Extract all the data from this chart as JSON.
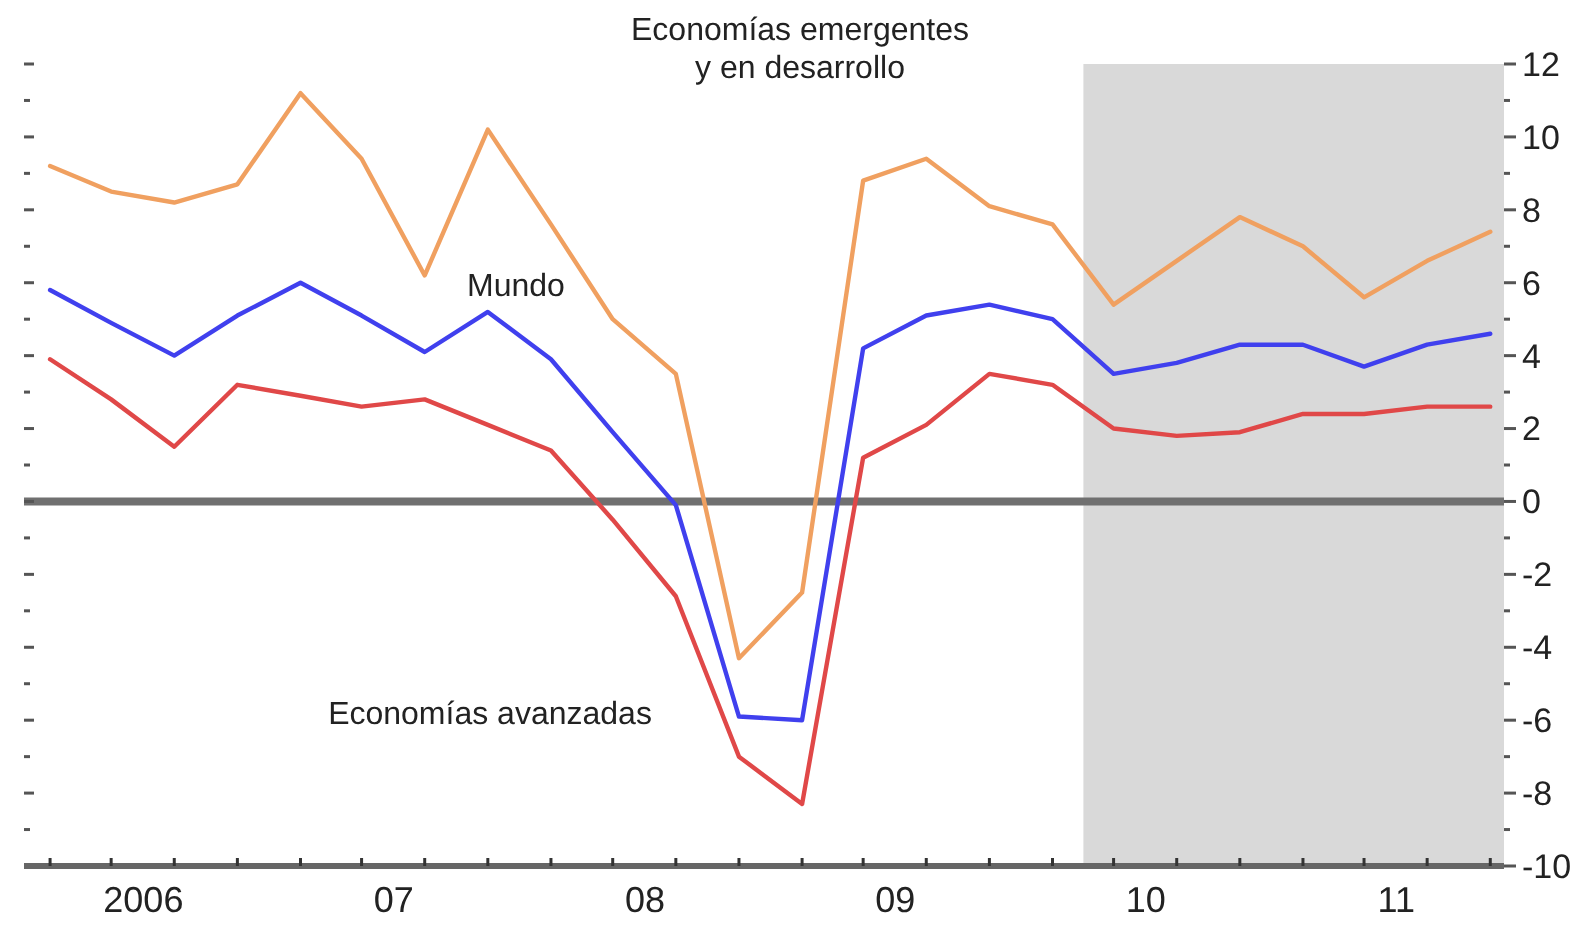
{
  "chart_data": {
    "type": "line",
    "x": [
      "2006-02-15",
      "2006-05-15",
      "2006-08-15",
      "2006-11-15",
      "2007-02-15",
      "2007-05-15",
      "2007-08-15",
      "2007-11-15",
      "2008-02-15",
      "2008-05-15",
      "2008-08-15",
      "2008-11-15",
      "2009-02-15",
      "2009-05-15",
      "2009-08-15",
      "2009-11-15",
      "2010-02-15",
      "2010-05-15",
      "2010-08-15",
      "2010-11-15",
      "2011-02-15",
      "2011-05-15",
      "2011-08-15",
      "2011-11-15"
    ],
    "series": [
      {
        "name": "Economías emergentes y en desarrollo",
        "color": "#f0a060",
        "values": [
          9.2,
          8.5,
          8.2,
          8.7,
          11.2,
          9.4,
          6.2,
          10.2,
          7.6,
          5.0,
          3.5,
          -4.3,
          -2.5,
          8.8,
          9.4,
          8.1,
          7.6,
          5.4,
          6.6,
          7.8,
          7.0,
          5.6,
          6.6,
          7.4
        ]
      },
      {
        "name": "Mundo",
        "color": "#4040ee",
        "values": [
          5.8,
          4.9,
          4.0,
          5.1,
          6.0,
          5.1,
          4.1,
          5.2,
          3.9,
          1.9,
          -0.1,
          -5.9,
          -6.0,
          4.2,
          5.1,
          5.4,
          5.0,
          3.5,
          3.8,
          4.3,
          4.3,
          3.7,
          4.3,
          4.6
        ]
      },
      {
        "name": "Economías avanzadas",
        "color": "#e04848",
        "values": [
          3.9,
          2.8,
          1.5,
          3.2,
          2.9,
          2.6,
          2.8,
          2.1,
          1.4,
          -0.5,
          -2.6,
          -7.0,
          -8.3,
          1.2,
          2.1,
          3.5,
          3.2,
          2.0,
          1.8,
          1.9,
          2.4,
          2.4,
          2.6,
          2.6
        ]
      }
    ],
    "xlim": [
      "2006-01-08",
      "2011-12-05"
    ],
    "xticks": [
      {
        "value": "2006-02-15",
        "label": null
      },
      {
        "value": "2006-05-15",
        "label": null
      },
      {
        "value": "2006-07-01",
        "label": "2006"
      },
      {
        "value": "2006-08-15",
        "label": null
      },
      {
        "value": "2006-11-15",
        "label": null
      },
      {
        "value": "2007-02-15",
        "label": null
      },
      {
        "value": "2007-05-15",
        "label": null
      },
      {
        "value": "2007-07-01",
        "label": "07"
      },
      {
        "value": "2007-08-15",
        "label": null
      },
      {
        "value": "2007-11-15",
        "label": null
      },
      {
        "value": "2008-02-15",
        "label": null
      },
      {
        "value": "2008-05-15",
        "label": null
      },
      {
        "value": "2008-07-01",
        "label": "08"
      },
      {
        "value": "2008-08-15",
        "label": null
      },
      {
        "value": "2008-11-15",
        "label": null
      },
      {
        "value": "2009-02-15",
        "label": null
      },
      {
        "value": "2009-05-15",
        "label": null
      },
      {
        "value": "2009-07-01",
        "label": "09"
      },
      {
        "value": "2009-08-15",
        "label": null
      },
      {
        "value": "2009-11-15",
        "label": null
      },
      {
        "value": "2010-02-15",
        "label": null
      },
      {
        "value": "2010-05-15",
        "label": null
      },
      {
        "value": "2010-07-01",
        "label": "10"
      },
      {
        "value": "2010-08-15",
        "label": null
      },
      {
        "value": "2010-11-15",
        "label": null
      },
      {
        "value": "2011-02-15",
        "label": null
      },
      {
        "value": "2011-05-15",
        "label": null
      },
      {
        "value": "2011-07-01",
        "label": "11"
      },
      {
        "value": "2011-08-15",
        "label": null
      },
      {
        "value": "2011-11-15",
        "label": null
      }
    ],
    "ylim": [
      -10,
      12
    ],
    "yticks": [
      -10,
      {
        "value": -9,
        "label": null
      },
      -8,
      {
        "value": -7,
        "label": null
      },
      -6,
      {
        "value": -5,
        "label": null
      },
      -4,
      {
        "value": -3,
        "label": null
      },
      -2,
      {
        "value": -1,
        "label": null
      },
      0,
      {
        "value": 1,
        "label": null
      },
      2,
      {
        "value": 3,
        "label": null
      },
      4,
      {
        "value": 5,
        "label": null
      },
      6,
      {
        "value": 7,
        "label": null
      },
      8,
      {
        "value": 9,
        "label": null
      },
      10,
      {
        "value": 11,
        "label": null
      },
      12
    ],
    "ref_lines": [
      {
        "axis": "y",
        "value": 0,
        "color": "#707070"
      }
    ],
    "bands": [
      {
        "axis": "x",
        "from": "2010-04-01",
        "to": "2011-12-05",
        "color": "#d9d9d9"
      }
    ],
    "grid": false,
    "legend": false,
    "marker": "none",
    "line_style": "solid"
  }
}
